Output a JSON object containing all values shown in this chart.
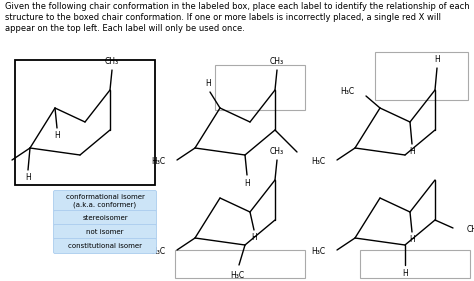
{
  "title": "Given the following chair conformation in the labeled box, place each label to identify the relationship of each structure to the boxed chair conformation. If one or more labels is incorrectly placed, a single red X will appear on the top left. Each label will only be used once.",
  "bg_color": "#ffffff",
  "label_bg": "#cce4f7",
  "label_edge": "#aaccee",
  "labels": [
    "conformational isomer\n(a.k.a. conformer)",
    "stereoisomer",
    "not isomer",
    "constitutional isomer"
  ],
  "title_fontsize": 6.0
}
